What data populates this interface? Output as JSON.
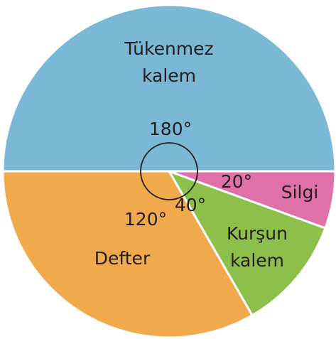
{
  "chart_data": {
    "type": "pie",
    "categories": [
      "Tükenmez kalem",
      "Silgi",
      "Kurşun kalem",
      "Defter"
    ],
    "values": [
      180,
      20,
      40,
      120
    ],
    "value_labels": [
      "180°",
      "20°",
      "40°",
      "120°"
    ],
    "colors": [
      "#7bb8d6",
      "#e070a8",
      "#8cc04b",
      "#f0a94b"
    ]
  }
}
